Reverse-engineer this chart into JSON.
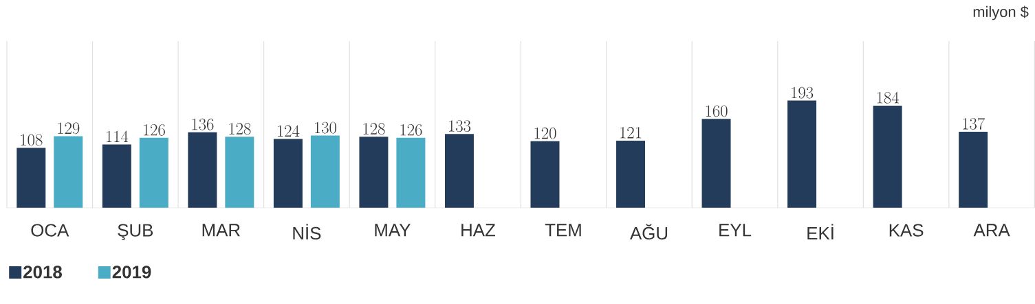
{
  "chart_data": {
    "type": "bar",
    "categories": [
      "OCA",
      "ŞUB",
      "MAR",
      "NİS",
      "MAY",
      "HAZ",
      "TEM",
      "AĞU",
      "EYL",
      "EKİ",
      "KAS",
      "ARA"
    ],
    "series": [
      {
        "name": "2018",
        "color": "#243c5c",
        "values": [
          108,
          114,
          136,
          124,
          128,
          133,
          120,
          121,
          160,
          193,
          184,
          137
        ]
      },
      {
        "name": "2019",
        "color": "#4bacc6",
        "values": [
          129,
          126,
          128,
          130,
          126,
          null,
          null,
          null,
          null,
          null,
          null,
          null
        ]
      }
    ],
    "ylim": [
      0,
      300
    ],
    "tick_labels": "x",
    "data_labels": true,
    "grid": "x",
    "legend": "bottom left",
    "annotations": [
      "milyon $"
    ]
  }
}
